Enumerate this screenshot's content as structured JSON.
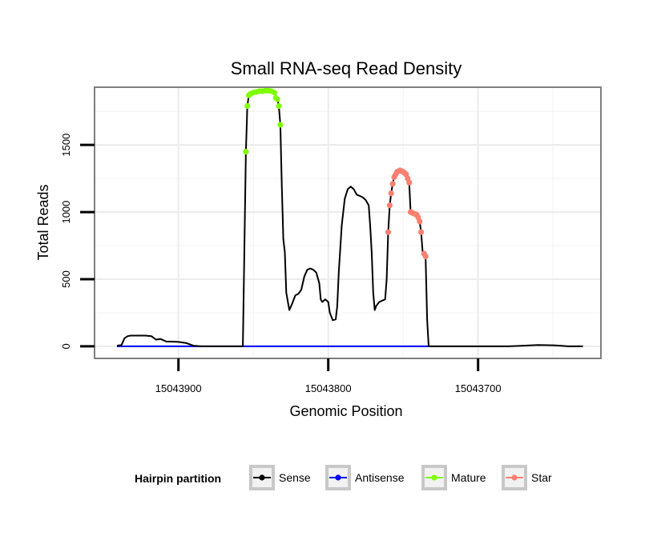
{
  "chart_data": {
    "type": "line",
    "title": "Small RNA-seq Read Density",
    "xlabel": "Genomic Position",
    "ylabel": "Total Reads",
    "x_reversed": true,
    "xlim": [
      15043956,
      15043618
    ],
    "ylim": [
      -90,
      1930
    ],
    "x_ticks": [
      {
        "value": 15043900,
        "label": "15043900"
      },
      {
        "value": 15043800,
        "label": "15043800"
      },
      {
        "value": 15043700,
        "label": "15043700"
      }
    ],
    "x_minor_ticks": [
      15043850,
      15043750,
      15043650
    ],
    "y_ticks": [
      {
        "value": 0,
        "label": "0"
      },
      {
        "value": 500,
        "label": "500"
      },
      {
        "value": 1000,
        "label": "1000"
      },
      {
        "value": 1500,
        "label": "1500"
      }
    ],
    "y_minor_ticks": [
      250,
      750,
      1250,
      1750
    ],
    "legend": {
      "title": "Hairpin partition",
      "position": "bottom",
      "entries": [
        {
          "label": "Sense",
          "color": "#000000"
        },
        {
          "label": "Antisense",
          "color": "#0000ff"
        },
        {
          "label": "Mature",
          "color": "#7fff00"
        },
        {
          "label": "Star",
          "color": "#fa8072"
        }
      ]
    },
    "series": [
      {
        "name": "Sense",
        "color": "#000000",
        "style": "line",
        "points": [
          [
            15043941,
            5
          ],
          [
            15043938,
            10
          ],
          [
            15043936,
            60
          ],
          [
            15043934,
            75
          ],
          [
            15043932,
            80
          ],
          [
            15043928,
            80
          ],
          [
            15043922,
            80
          ],
          [
            15043918,
            75
          ],
          [
            15043915,
            50
          ],
          [
            15043912,
            55
          ],
          [
            15043910,
            45
          ],
          [
            15043908,
            35
          ],
          [
            15043905,
            35
          ],
          [
            15043900,
            33
          ],
          [
            15043895,
            25
          ],
          [
            15043890,
            5
          ],
          [
            15043885,
            0
          ],
          [
            15043857,
            0
          ],
          [
            15043855,
            1450
          ],
          [
            15043854,
            1790
          ],
          [
            15043853,
            1870
          ],
          [
            15043850,
            1890
          ],
          [
            15043845,
            1900
          ],
          [
            15043840,
            1905
          ],
          [
            15043836,
            1890
          ],
          [
            15043834,
            1840
          ],
          [
            15043833,
            1790
          ],
          [
            15043832,
            1650
          ],
          [
            15043831,
            1200
          ],
          [
            15043830,
            800
          ],
          [
            15043829,
            700
          ],
          [
            15043828,
            400
          ],
          [
            15043826,
            270
          ],
          [
            15043824,
            320
          ],
          [
            15043822,
            380
          ],
          [
            15043820,
            390
          ],
          [
            15043818,
            420
          ],
          [
            15043816,
            520
          ],
          [
            15043814,
            570
          ],
          [
            15043812,
            580
          ],
          [
            15043810,
            570
          ],
          [
            15043808,
            550
          ],
          [
            15043806,
            470
          ],
          [
            15043805,
            350
          ],
          [
            15043804,
            330
          ],
          [
            15043802,
            350
          ],
          [
            15043800,
            330
          ],
          [
            15043799,
            250
          ],
          [
            15043797,
            195
          ],
          [
            15043795,
            200
          ],
          [
            15043794,
            300
          ],
          [
            15043793,
            550
          ],
          [
            15043791,
            900
          ],
          [
            15043789,
            1100
          ],
          [
            15043787,
            1170
          ],
          [
            15043785,
            1190
          ],
          [
            15043783,
            1170
          ],
          [
            15043781,
            1130
          ],
          [
            15043779,
            1120
          ],
          [
            15043777,
            1110
          ],
          [
            15043775,
            1090
          ],
          [
            15043773,
            1050
          ],
          [
            15043772,
            900
          ],
          [
            15043771,
            700
          ],
          [
            15043770,
            400
          ],
          [
            15043769,
            270
          ],
          [
            15043768,
            300
          ],
          [
            15043766,
            330
          ],
          [
            15043764,
            340
          ],
          [
            15043762,
            350
          ],
          [
            15043761,
            500
          ],
          [
            15043760,
            850
          ],
          [
            15043759,
            1050
          ],
          [
            15043758,
            1140
          ],
          [
            15043757,
            1210
          ],
          [
            15043756,
            1260
          ],
          [
            15043754,
            1300
          ],
          [
            15043752,
            1310
          ],
          [
            15043750,
            1300
          ],
          [
            15043748,
            1280
          ],
          [
            15043747,
            1250
          ],
          [
            15043746,
            1220
          ],
          [
            15043745,
            1000
          ],
          [
            15043743,
            990
          ],
          [
            15043741,
            980
          ],
          [
            15043740,
            960
          ],
          [
            15043739,
            930
          ],
          [
            15043738,
            850
          ],
          [
            15043737,
            700
          ],
          [
            15043736,
            680
          ],
          [
            15043735,
            660
          ],
          [
            15043734,
            200
          ],
          [
            15043733,
            0
          ],
          [
            15043680,
            0
          ],
          [
            15043670,
            5
          ],
          [
            15043660,
            10
          ],
          [
            15043650,
            8
          ],
          [
            15043645,
            5
          ],
          [
            15043640,
            0
          ],
          [
            15043630,
            0
          ]
        ]
      },
      {
        "name": "Antisense",
        "color": "#0000ff",
        "style": "line",
        "points": [
          [
            15043941,
            0
          ],
          [
            15043733,
            0
          ]
        ]
      },
      {
        "name": "Mature",
        "color": "#7fff00",
        "style": "points",
        "points": [
          [
            15043855,
            1450
          ],
          [
            15043854,
            1790
          ],
          [
            15043853,
            1870
          ],
          [
            15043852,
            1880
          ],
          [
            15043850,
            1890
          ],
          [
            15043848,
            1895
          ],
          [
            15043846,
            1900
          ],
          [
            15043844,
            1900
          ],
          [
            15043842,
            1905
          ],
          [
            15043840,
            1905
          ],
          [
            15043838,
            1900
          ],
          [
            15043836,
            1890
          ],
          [
            15043835,
            1850
          ],
          [
            15043834,
            1840
          ],
          [
            15043833,
            1790
          ],
          [
            15043832,
            1650
          ]
        ]
      },
      {
        "name": "Star",
        "color": "#fa8072",
        "style": "points",
        "points": [
          [
            15043760,
            850
          ],
          [
            15043759,
            1050
          ],
          [
            15043758,
            1140
          ],
          [
            15043757,
            1210
          ],
          [
            15043756,
            1260
          ],
          [
            15043755,
            1280
          ],
          [
            15043754,
            1300
          ],
          [
            15043753,
            1305
          ],
          [
            15043752,
            1310
          ],
          [
            15043751,
            1305
          ],
          [
            15043750,
            1300
          ],
          [
            15043749,
            1290
          ],
          [
            15043748,
            1280
          ],
          [
            15043747,
            1250
          ],
          [
            15043746,
            1220
          ],
          [
            15043745,
            1000
          ],
          [
            15043744,
            995
          ],
          [
            15043743,
            990
          ],
          [
            15043742,
            985
          ],
          [
            15043741,
            980
          ],
          [
            15043740,
            960
          ],
          [
            15043739,
            930
          ],
          [
            15043738,
            850
          ],
          [
            15043736,
            690
          ],
          [
            15043735,
            670
          ]
        ]
      }
    ]
  }
}
